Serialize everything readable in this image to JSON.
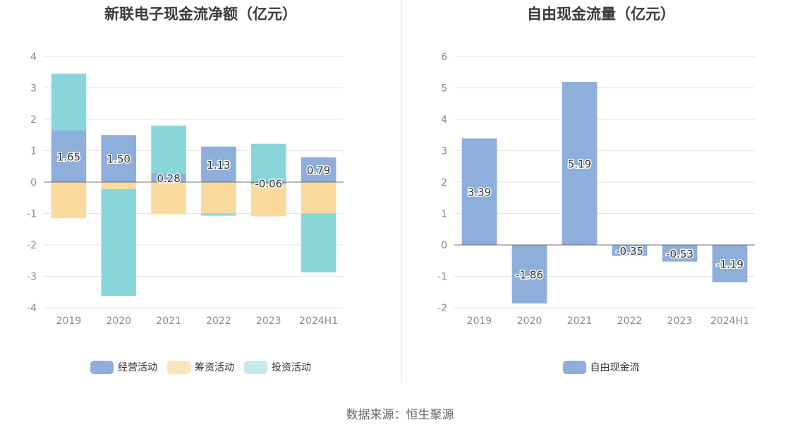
{
  "chart_data": [
    {
      "type": "bar",
      "stacked": true,
      "title": "新联电子现金流净额（亿元）",
      "categories": [
        "2019",
        "2020",
        "2021",
        "2022",
        "2023",
        "2024H1"
      ],
      "ylim": [
        -4,
        4
      ],
      "yticks": [
        "-4",
        "-3",
        "-2",
        "-1",
        "0",
        "1",
        "2",
        "3",
        "4"
      ],
      "grid": true,
      "legend_position": "bottom",
      "series": [
        {
          "name": "经营活动",
          "color": "#8eaedb",
          "values": [
            1.65,
            1.5,
            0.28,
            1.13,
            -0.06,
            0.79
          ],
          "labels": [
            "1.65",
            "1.50",
            "0.28",
            "1.13",
            "-0.06",
            "0.79"
          ]
        },
        {
          "name": "筹资活动",
          "color": "#fcd99d",
          "values": [
            -1.15,
            -0.22,
            -1.02,
            -1.0,
            -1.03,
            -1.0
          ]
        },
        {
          "name": "投资活动",
          "color": "#89d6da",
          "values": [
            1.8,
            -3.4,
            1.52,
            -0.07,
            1.22,
            -1.87
          ]
        }
      ]
    },
    {
      "type": "bar",
      "title": "自由现金流量（亿元）",
      "categories": [
        "2019",
        "2020",
        "2021",
        "2022",
        "2023",
        "2024H1"
      ],
      "ylim": [
        -2,
        6
      ],
      "yticks": [
        "-2",
        "-1",
        "0",
        "1",
        "2",
        "3",
        "4",
        "5",
        "6"
      ],
      "grid": true,
      "legend_position": "bottom",
      "series": [
        {
          "name": "自由现金流",
          "color": "#8eaedb",
          "values": [
            3.39,
            -1.86,
            5.19,
            -0.35,
            -0.53,
            -1.19
          ],
          "labels": [
            "3.39",
            "-1.86",
            "5.19",
            "-0.35",
            "-0.53",
            "-1.19"
          ]
        }
      ]
    }
  ],
  "legend_colors": {
    "operating": "#8eaedb",
    "financing": "#fde4bf",
    "investing": "#c4eaed",
    "free_cash_flow": "#8eaedb"
  },
  "source": "数据来源：恒生聚源"
}
